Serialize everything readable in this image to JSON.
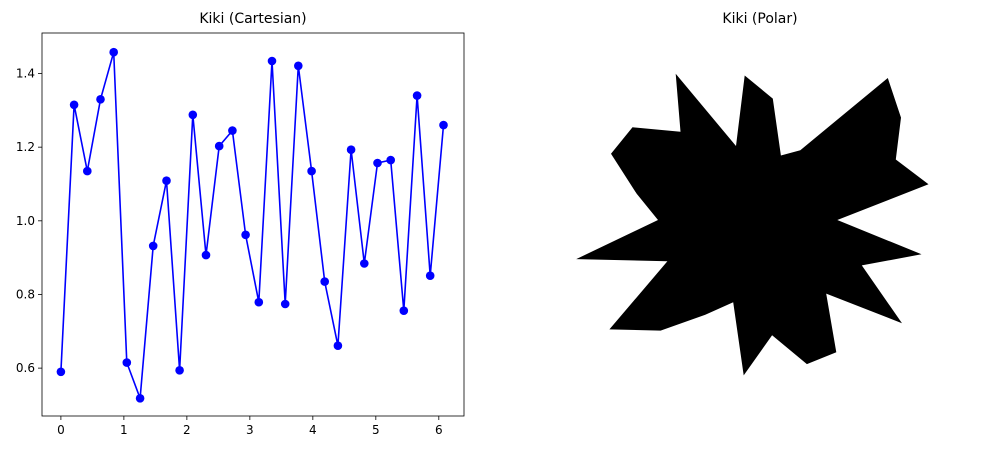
{
  "chart_data": [
    {
      "type": "line",
      "title": "Kiki (Cartesian)",
      "xlabel": "",
      "ylabel": "",
      "xlim": [
        -0.3,
        6.4
      ],
      "ylim": [
        0.47,
        1.51
      ],
      "xticks": [
        0,
        1,
        2,
        3,
        4,
        5,
        6
      ],
      "xtick_labels": [
        "0",
        "1",
        "2",
        "3",
        "4",
        "5",
        "6"
      ],
      "yticks": [
        0.6,
        0.8,
        1.0,
        1.2,
        1.4
      ],
      "ytick_labels": [
        "0.6",
        "0.8",
        "1.0",
        "1.2",
        "1.4"
      ],
      "grid": false,
      "color": "#0000ff",
      "marker": "o",
      "series": [
        {
          "x": [
            0.0,
            0.209,
            0.419,
            0.628,
            0.838,
            1.047,
            1.257,
            1.466,
            1.676,
            1.885,
            2.094,
            2.304,
            2.513,
            2.723,
            2.932,
            3.142,
            3.351,
            3.561,
            3.77,
            3.98,
            4.189,
            4.398,
            4.608,
            4.817,
            5.027,
            5.236,
            5.445,
            5.655,
            5.864,
            6.074
          ],
          "y": [
            0.59,
            1.315,
            1.135,
            1.33,
            1.458,
            0.615,
            0.518,
            0.932,
            1.109,
            0.594,
            1.288,
            0.907,
            1.203,
            1.245,
            0.962,
            0.779,
            1.434,
            0.774,
            1.421,
            1.135,
            0.835,
            0.661,
            1.193,
            0.884,
            1.157,
            1.165,
            0.756,
            1.34,
            0.851,
            1.26
          ]
        }
      ]
    },
    {
      "type": "polar-fill",
      "title": "Kiki (Polar)",
      "color": "#000000",
      "theta": [
        0.0,
        0.209,
        0.419,
        0.628,
        0.838,
        1.047,
        1.257,
        1.466,
        1.676,
        1.885,
        2.094,
        2.304,
        2.513,
        2.723,
        2.932,
        3.142,
        3.351,
        3.561,
        3.77,
        3.98,
        4.189,
        4.398,
        4.608,
        4.817,
        5.027,
        5.236,
        5.445,
        5.655,
        5.864,
        6.074
      ],
      "r": [
        0.59,
        1.315,
        1.135,
        1.33,
        1.458,
        0.615,
        0.518,
        0.932,
        1.109,
        0.594,
        1.288,
        0.907,
        1.203,
        1.245,
        0.962,
        0.779,
        1.434,
        0.774,
        1.421,
        1.135,
        0.835,
        0.661,
        1.193,
        0.884,
        1.157,
        1.165,
        0.756,
        1.34,
        0.851,
        1.26
      ]
    }
  ]
}
